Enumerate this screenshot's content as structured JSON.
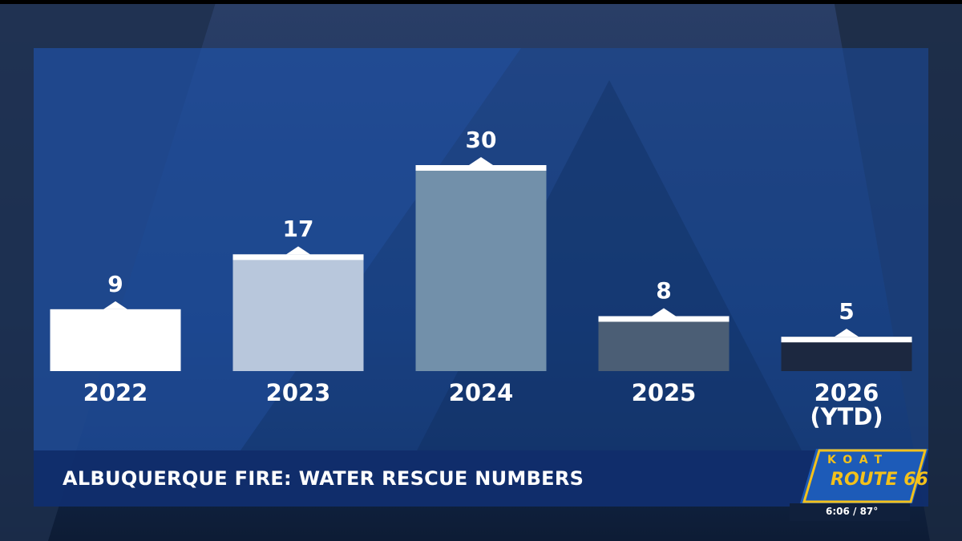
{
  "chart_data": {
    "type": "bar",
    "categories": [
      "2022",
      "2023",
      "2024",
      "2025",
      "2026\n(YTD)"
    ],
    "values": [
      9,
      17,
      30,
      8,
      5
    ],
    "colors": [
      "#ffffff",
      "#b8c7dc",
      "#7290aa",
      "#4b5e75",
      "#1c2840"
    ]
  },
  "lower_third": {
    "title": "ALBUQUERQUE FIRE: WATER RESCUE NUMBERS"
  },
  "logo": {
    "station": "KOAT",
    "brand": "ROUTE 66",
    "status": "6:06 / 87°"
  }
}
